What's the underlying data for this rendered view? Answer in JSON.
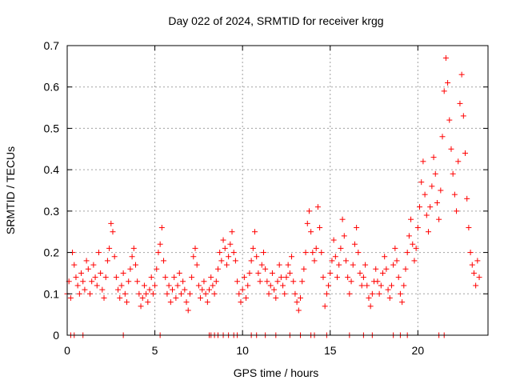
{
  "chart_data": {
    "type": "scatter",
    "title": "Day 022 of 2024, SRMTID for receiver krgg",
    "xlabel": "GPS time / hours",
    "ylabel": "SRMTID / TECUs",
    "xlim": [
      0,
      24
    ],
    "ylim": [
      0,
      0.7
    ],
    "xticks": [
      0,
      5,
      10,
      15,
      20
    ],
    "yticks": [
      0,
      0.1,
      0.2,
      0.3,
      0.4,
      0.5,
      0.6,
      0.7
    ],
    "xtick_labels": [
      "0",
      "5",
      "10",
      "15",
      "20"
    ],
    "ytick_labels": [
      "0",
      "0.1",
      "0.2",
      "0.3",
      "0.4",
      "0.5",
      "0.6",
      "0.7"
    ],
    "grid": true,
    "marker": "+",
    "marker_color": "#ff0000",
    "series": [
      {
        "name": "SRMTID",
        "points": [
          [
            0.0,
            0.1
          ],
          [
            0.1,
            0.13
          ],
          [
            0.2,
            0.09
          ],
          [
            0.3,
            0.2
          ],
          [
            0.4,
            0.17
          ],
          [
            0.5,
            0.14
          ],
          [
            0.6,
            0.12
          ],
          [
            0.7,
            0.1
          ],
          [
            0.8,
            0.15
          ],
          [
            0.9,
            0.13
          ],
          [
            1.0,
            0.11
          ],
          [
            1.1,
            0.18
          ],
          [
            1.2,
            0.16
          ],
          [
            1.3,
            0.1
          ],
          [
            1.4,
            0.13
          ],
          [
            1.5,
            0.17
          ],
          [
            1.6,
            0.14
          ],
          [
            1.7,
            0.12
          ],
          [
            1.8,
            0.2
          ],
          [
            1.9,
            0.15
          ],
          [
            2.0,
            0.11
          ],
          [
            2.1,
            0.09
          ],
          [
            2.2,
            0.14
          ],
          [
            2.3,
            0.18
          ],
          [
            2.4,
            0.21
          ],
          [
            2.5,
            0.27
          ],
          [
            2.6,
            0.25
          ],
          [
            2.7,
            0.19
          ],
          [
            2.8,
            0.14
          ],
          [
            2.9,
            0.11
          ],
          [
            3.0,
            0.09
          ],
          [
            3.1,
            0.12
          ],
          [
            3.2,
            0.15
          ],
          [
            3.3,
            0.1
          ],
          [
            3.4,
            0.08
          ],
          [
            3.5,
            0.13
          ],
          [
            3.6,
            0.16
          ],
          [
            3.7,
            0.19
          ],
          [
            3.8,
            0.21
          ],
          [
            3.9,
            0.17
          ],
          [
            4.0,
            0.13
          ],
          [
            4.1,
            0.1
          ],
          [
            4.2,
            0.07
          ],
          [
            4.3,
            0.09
          ],
          [
            4.4,
            0.12
          ],
          [
            4.5,
            0.1
          ],
          [
            4.6,
            0.08
          ],
          [
            4.7,
            0.11
          ],
          [
            4.8,
            0.14
          ],
          [
            4.9,
            0.1
          ],
          [
            5.0,
            0.12
          ],
          [
            5.1,
            0.16
          ],
          [
            5.2,
            0.2
          ],
          [
            5.3,
            0.22
          ],
          [
            5.4,
            0.26
          ],
          [
            5.5,
            0.18
          ],
          [
            5.6,
            0.14
          ],
          [
            5.7,
            0.1
          ],
          [
            5.8,
            0.12
          ],
          [
            5.9,
            0.08
          ],
          [
            6.0,
            0.11
          ],
          [
            6.1,
            0.14
          ],
          [
            6.2,
            0.09
          ],
          [
            6.3,
            0.12
          ],
          [
            6.4,
            0.15
          ],
          [
            6.5,
            0.1
          ],
          [
            6.6,
            0.13
          ],
          [
            6.7,
            0.11
          ],
          [
            6.8,
            0.08
          ],
          [
            6.9,
            0.06
          ],
          [
            7.0,
            0.1
          ],
          [
            7.1,
            0.14
          ],
          [
            7.2,
            0.19
          ],
          [
            7.3,
            0.21
          ],
          [
            7.4,
            0.17
          ],
          [
            7.5,
            0.12
          ],
          [
            7.6,
            0.09
          ],
          [
            7.7,
            0.11
          ],
          [
            7.8,
            0.13
          ],
          [
            7.9,
            0.1
          ],
          [
            8.0,
            0.08
          ],
          [
            8.1,
            0.11
          ],
          [
            8.2,
            0.14
          ],
          [
            8.3,
            0.12
          ],
          [
            8.4,
            0.1
          ],
          [
            8.5,
            0.13
          ],
          [
            8.6,
            0.16
          ],
          [
            8.7,
            0.2
          ],
          [
            8.8,
            0.18
          ],
          [
            8.9,
            0.23
          ],
          [
            9.0,
            0.21
          ],
          [
            9.1,
            0.17
          ],
          [
            9.2,
            0.19
          ],
          [
            9.3,
            0.22
          ],
          [
            9.4,
            0.25
          ],
          [
            9.5,
            0.2
          ],
          [
            9.6,
            0.18
          ],
          [
            9.7,
            0.13
          ],
          [
            9.8,
            0.1
          ],
          [
            9.9,
            0.08
          ],
          [
            10.0,
            0.11
          ],
          [
            10.1,
            0.14
          ],
          [
            10.2,
            0.09
          ],
          [
            10.3,
            0.12
          ],
          [
            10.4,
            0.15
          ],
          [
            10.5,
            0.18
          ],
          [
            10.6,
            0.21
          ],
          [
            10.7,
            0.25
          ],
          [
            10.8,
            0.19
          ],
          [
            10.9,
            0.15
          ],
          [
            11.0,
            0.13
          ],
          [
            11.1,
            0.17
          ],
          [
            11.2,
            0.2
          ],
          [
            11.3,
            0.16
          ],
          [
            11.4,
            0.13
          ],
          [
            11.5,
            0.1
          ],
          [
            11.6,
            0.12
          ],
          [
            11.7,
            0.15
          ],
          [
            11.8,
            0.11
          ],
          [
            11.9,
            0.09
          ],
          [
            12.0,
            0.13
          ],
          [
            12.1,
            0.17
          ],
          [
            12.2,
            0.14
          ],
          [
            12.3,
            0.12
          ],
          [
            12.4,
            0.1
          ],
          [
            12.5,
            0.14
          ],
          [
            12.6,
            0.17
          ],
          [
            12.7,
            0.15
          ],
          [
            12.8,
            0.19
          ],
          [
            12.9,
            0.13
          ],
          [
            13.0,
            0.1
          ],
          [
            13.1,
            0.08
          ],
          [
            13.2,
            0.06
          ],
          [
            13.3,
            0.09
          ],
          [
            13.4,
            0.13
          ],
          [
            13.5,
            0.16
          ],
          [
            13.6,
            0.2
          ],
          [
            13.7,
            0.27
          ],
          [
            13.8,
            0.3
          ],
          [
            13.9,
            0.25
          ],
          [
            14.0,
            0.2
          ],
          [
            14.1,
            0.18
          ],
          [
            14.2,
            0.21
          ],
          [
            14.3,
            0.31
          ],
          [
            14.4,
            0.26
          ],
          [
            14.5,
            0.2
          ],
          [
            14.6,
            0.14
          ],
          [
            14.7,
            0.07
          ],
          [
            14.8,
            0.1
          ],
          [
            14.9,
            0.12
          ],
          [
            15.0,
            0.15
          ],
          [
            15.1,
            0.18
          ],
          [
            15.2,
            0.23
          ],
          [
            15.3,
            0.19
          ],
          [
            15.4,
            0.14
          ],
          [
            15.5,
            0.17
          ],
          [
            15.6,
            0.21
          ],
          [
            15.7,
            0.28
          ],
          [
            15.8,
            0.24
          ],
          [
            15.9,
            0.18
          ],
          [
            16.0,
            0.14
          ],
          [
            16.1,
            0.1
          ],
          [
            16.2,
            0.13
          ],
          [
            16.3,
            0.17
          ],
          [
            16.4,
            0.22
          ],
          [
            16.5,
            0.26
          ],
          [
            16.6,
            0.2
          ],
          [
            16.7,
            0.15
          ],
          [
            16.8,
            0.12
          ],
          [
            16.9,
            0.14
          ],
          [
            17.0,
            0.17
          ],
          [
            17.1,
            0.12
          ],
          [
            17.2,
            0.09
          ],
          [
            17.3,
            0.07
          ],
          [
            17.4,
            0.1
          ],
          [
            17.5,
            0.13
          ],
          [
            17.6,
            0.16
          ],
          [
            17.7,
            0.13
          ],
          [
            17.8,
            0.1
          ],
          [
            17.9,
            0.12
          ],
          [
            18.0,
            0.15
          ],
          [
            18.1,
            0.19
          ],
          [
            18.2,
            0.16
          ],
          [
            18.3,
            0.11
          ],
          [
            18.4,
            0.09
          ],
          [
            18.5,
            0.12
          ],
          [
            18.6,
            0.17
          ],
          [
            18.7,
            0.21
          ],
          [
            18.8,
            0.18
          ],
          [
            18.9,
            0.14
          ],
          [
            19.0,
            0.1
          ],
          [
            19.1,
            0.08
          ],
          [
            19.2,
            0.12
          ],
          [
            19.3,
            0.16
          ],
          [
            19.4,
            0.2
          ],
          [
            19.5,
            0.24
          ],
          [
            19.6,
            0.28
          ],
          [
            19.7,
            0.22
          ],
          [
            19.8,
            0.18
          ],
          [
            19.9,
            0.21
          ],
          [
            20.0,
            0.26
          ],
          [
            20.1,
            0.31
          ],
          [
            20.2,
            0.37
          ],
          [
            20.3,
            0.42
          ],
          [
            20.4,
            0.34
          ],
          [
            20.5,
            0.29
          ],
          [
            20.6,
            0.25
          ],
          [
            20.7,
            0.31
          ],
          [
            20.8,
            0.36
          ],
          [
            20.9,
            0.43
          ],
          [
            21.0,
            0.39
          ],
          [
            21.1,
            0.32
          ],
          [
            21.2,
            0.28
          ],
          [
            21.3,
            0.35
          ],
          [
            21.4,
            0.48
          ],
          [
            21.5,
            0.59
          ],
          [
            21.6,
            0.67
          ],
          [
            21.7,
            0.61
          ],
          [
            21.8,
            0.52
          ],
          [
            21.9,
            0.45
          ],
          [
            22.0,
            0.39
          ],
          [
            22.1,
            0.34
          ],
          [
            22.2,
            0.3
          ],
          [
            22.3,
            0.42
          ],
          [
            22.4,
            0.56
          ],
          [
            22.5,
            0.63
          ],
          [
            22.6,
            0.53
          ],
          [
            22.7,
            0.44
          ],
          [
            22.8,
            0.33
          ],
          [
            22.9,
            0.26
          ],
          [
            23.0,
            0.2
          ],
          [
            23.1,
            0.17
          ],
          [
            23.2,
            0.15
          ],
          [
            23.3,
            0.12
          ],
          [
            23.4,
            0.18
          ],
          [
            23.5,
            0.14
          ],
          [
            0.2,
            0.0
          ],
          [
            0.4,
            0.0
          ],
          [
            0.9,
            0.0
          ],
          [
            3.2,
            0.0
          ],
          [
            5.3,
            0.0
          ],
          [
            8.1,
            0.0
          ],
          [
            8.2,
            0.0
          ],
          [
            8.4,
            0.0
          ],
          [
            8.6,
            0.0
          ],
          [
            8.9,
            0.0
          ],
          [
            9.2,
            0.0
          ],
          [
            9.5,
            0.0
          ],
          [
            9.7,
            0.0
          ],
          [
            10.5,
            0.0
          ],
          [
            10.8,
            0.0
          ],
          [
            11.3,
            0.0
          ],
          [
            11.9,
            0.0
          ],
          [
            12.7,
            0.0
          ],
          [
            13.3,
            0.0
          ],
          [
            13.9,
            0.0
          ],
          [
            14.1,
            0.0
          ],
          [
            14.8,
            0.0
          ],
          [
            16.1,
            0.0
          ],
          [
            16.9,
            0.0
          ],
          [
            17.4,
            0.0
          ],
          [
            18.6,
            0.0
          ],
          [
            19.0,
            0.0
          ],
          [
            19.4,
            0.0
          ],
          [
            21.2,
            0.0
          ],
          [
            21.5,
            0.0
          ]
        ]
      }
    ]
  }
}
